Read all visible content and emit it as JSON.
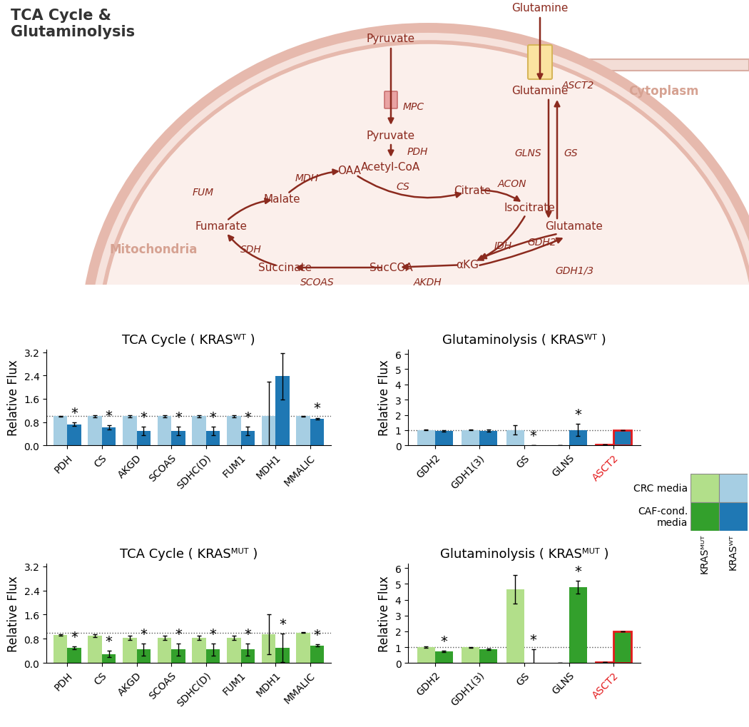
{
  "diagram": {
    "title": "TCA Cycle &\nGlutaminolysis",
    "regions": {
      "cytoplasm": "Cytoplasm",
      "mitochondria": "Mitochondria"
    },
    "metabolites": {
      "glutamine_out": "Glutamine",
      "glutamine_in": "Glutamine",
      "pyruvate_out": "Pyruvate",
      "pyruvate_in": "Pyruvate",
      "acetylcoa": "Acetyl-CoA",
      "citrate": "Citrate",
      "isocitrate": "Isocitrate",
      "akg": "αKG",
      "succoa": "SucCOA",
      "succinate": "Succinate",
      "fumarate": "Fumarate",
      "malate": "Malate",
      "oaa": "OAA",
      "glutamate": "Glutamate"
    },
    "enzymes": {
      "asct2": "ASCT2",
      "mpc": "MPC",
      "pdh": "PDH",
      "cs": "CS",
      "acon": "ACON",
      "idh": "IDH",
      "gdh2": "GDH2",
      "gdh13": "GDH1/3",
      "glns": "GLNS",
      "gs": "GS",
      "akdh": "AKDH",
      "scoas": "SCOAS",
      "sdh": "SDH",
      "fum": "FUM",
      "mdh": "MDH"
    }
  },
  "legend_grid": {
    "rows": [
      "CRC media",
      "CAF-cond.\nmedia"
    ],
    "columns": [
      "KRASᴹᵁᵀ",
      "KRASᵂᵀ"
    ],
    "colors": [
      [
        "#b2df8a",
        "#a6cee3"
      ],
      [
        "#33a02c",
        "#1f78b4"
      ]
    ]
  },
  "chart_data": [
    {
      "type": "bar",
      "title": "TCA Cycle ( KRASᵂᵀ )",
      "y_label": "Relative Flux",
      "categories": [
        "PDH",
        "CS",
        "AKGD",
        "SCOAS",
        "SDHC(D)",
        "FUM1",
        "MDH1",
        "MMALIC"
      ],
      "series": [
        {
          "color": "#a6cee3",
          "values": [
            1.0,
            1.0,
            1.0,
            1.0,
            1.0,
            1.0,
            1.0,
            1.0
          ],
          "errors": [
            0.02,
            0.03,
            0.04,
            0.04,
            0.03,
            0.03,
            1.2,
            0.01
          ]
        },
        {
          "color": "#1f78b4",
          "values": [
            0.72,
            0.62,
            0.5,
            0.5,
            0.5,
            0.5,
            2.38,
            0.92
          ],
          "errors": [
            0.06,
            0.07,
            0.15,
            0.15,
            0.15,
            0.15,
            0.8,
            0.03
          ],
          "significance": [
            true,
            true,
            true,
            true,
            true,
            true,
            false,
            true
          ]
        }
      ],
      "ylim": [
        0,
        3.3
      ],
      "yticks": [
        {
          "value": 0,
          "label": "0.0"
        },
        0.8,
        1.6,
        2.4,
        3.2
      ],
      "reference_line": 1,
      "annotation": "*"
    },
    {
      "type": "bar",
      "title": "Glutaminolysis ( KRASᵂᵀ )",
      "y_label": "Relative Flux",
      "categories": [
        "GDH2",
        "GDH1(3)",
        "GS",
        "GLNS",
        "ASCT2"
      ],
      "series": [
        {
          "color": "#a6cee3",
          "values": [
            1.0,
            1.0,
            1.0,
            0,
            0.07
          ],
          "errors": [
            0.02,
            0.02,
            0.3,
            0,
            0
          ]
        },
        {
          "color": "#1f78b4",
          "values": [
            0.95,
            0.97,
            0,
            1.0,
            1.0
          ],
          "errors": [
            0.05,
            0.05,
            0,
            0.4,
            0
          ],
          "significance": [
            false,
            false,
            true,
            true,
            false
          ]
        }
      ],
      "ylim": [
        0,
        6.3
      ],
      "yticks": [
        0,
        1,
        2,
        3,
        4,
        5,
        6
      ],
      "reference_line": 1,
      "annotation": "*",
      "highlight": {
        "category": "ASCT2",
        "color": "#e41a1c"
      }
    },
    {
      "type": "bar",
      "title": "TCA Cycle ( KRASᴹᵁᵀ )",
      "y_label": "Relative Flux",
      "categories": [
        "PDH",
        "CS",
        "AKGD",
        "SCOAS",
        "SDHC(D)",
        "FUM1",
        "MDH1",
        "MMALIC"
      ],
      "series": [
        {
          "color": "#b2df8a",
          "values": [
            0.93,
            0.9,
            0.84,
            0.83,
            0.83,
            0.83,
            0.95,
            1.0
          ],
          "errors": [
            0.03,
            0.05,
            0.07,
            0.07,
            0.07,
            0.07,
            0.65,
            0.01
          ]
        },
        {
          "color": "#33a02c",
          "values": [
            0.5,
            0.3,
            0.45,
            0.45,
            0.45,
            0.45,
            0.5,
            0.58
          ],
          "errors": [
            0.05,
            0.1,
            0.2,
            0.2,
            0.2,
            0.2,
            0.48,
            0.03
          ],
          "significance": [
            true,
            true,
            true,
            true,
            true,
            true,
            true,
            true
          ]
        }
      ],
      "ylim": [
        0,
        3.3
      ],
      "yticks": [
        {
          "value": 0,
          "label": "0.0"
        },
        0.8,
        1.6,
        2.4,
        3.2
      ],
      "reference_line": 1,
      "annotation": "*"
    },
    {
      "type": "bar",
      "title": "Glutaminolysis ( KRASᴹᵁᵀ )",
      "y_label": "Relative Flux",
      "categories": [
        "GDH2",
        "GDH1(3)",
        "GS",
        "GLNS",
        "ASCT2"
      ],
      "series": [
        {
          "color": "#b2df8a",
          "values": [
            1.0,
            1.0,
            4.65,
            0,
            0.07
          ],
          "errors": [
            0.03,
            0.02,
            0.9,
            0,
            0
          ]
        },
        {
          "color": "#33a02c",
          "values": [
            0.72,
            0.85,
            0,
            4.8,
            2.0
          ],
          "errors": [
            0.05,
            0.05,
            0.85,
            0.4,
            0
          ],
          "significance": [
            true,
            false,
            true,
            true,
            false
          ]
        }
      ],
      "ylim": [
        0,
        6.3
      ],
      "yticks": [
        0,
        1,
        2,
        3,
        4,
        5,
        6
      ],
      "reference_line": 1,
      "annotation": "*",
      "highlight": {
        "category": "ASCT2",
        "color": "#e41a1c"
      }
    }
  ]
}
